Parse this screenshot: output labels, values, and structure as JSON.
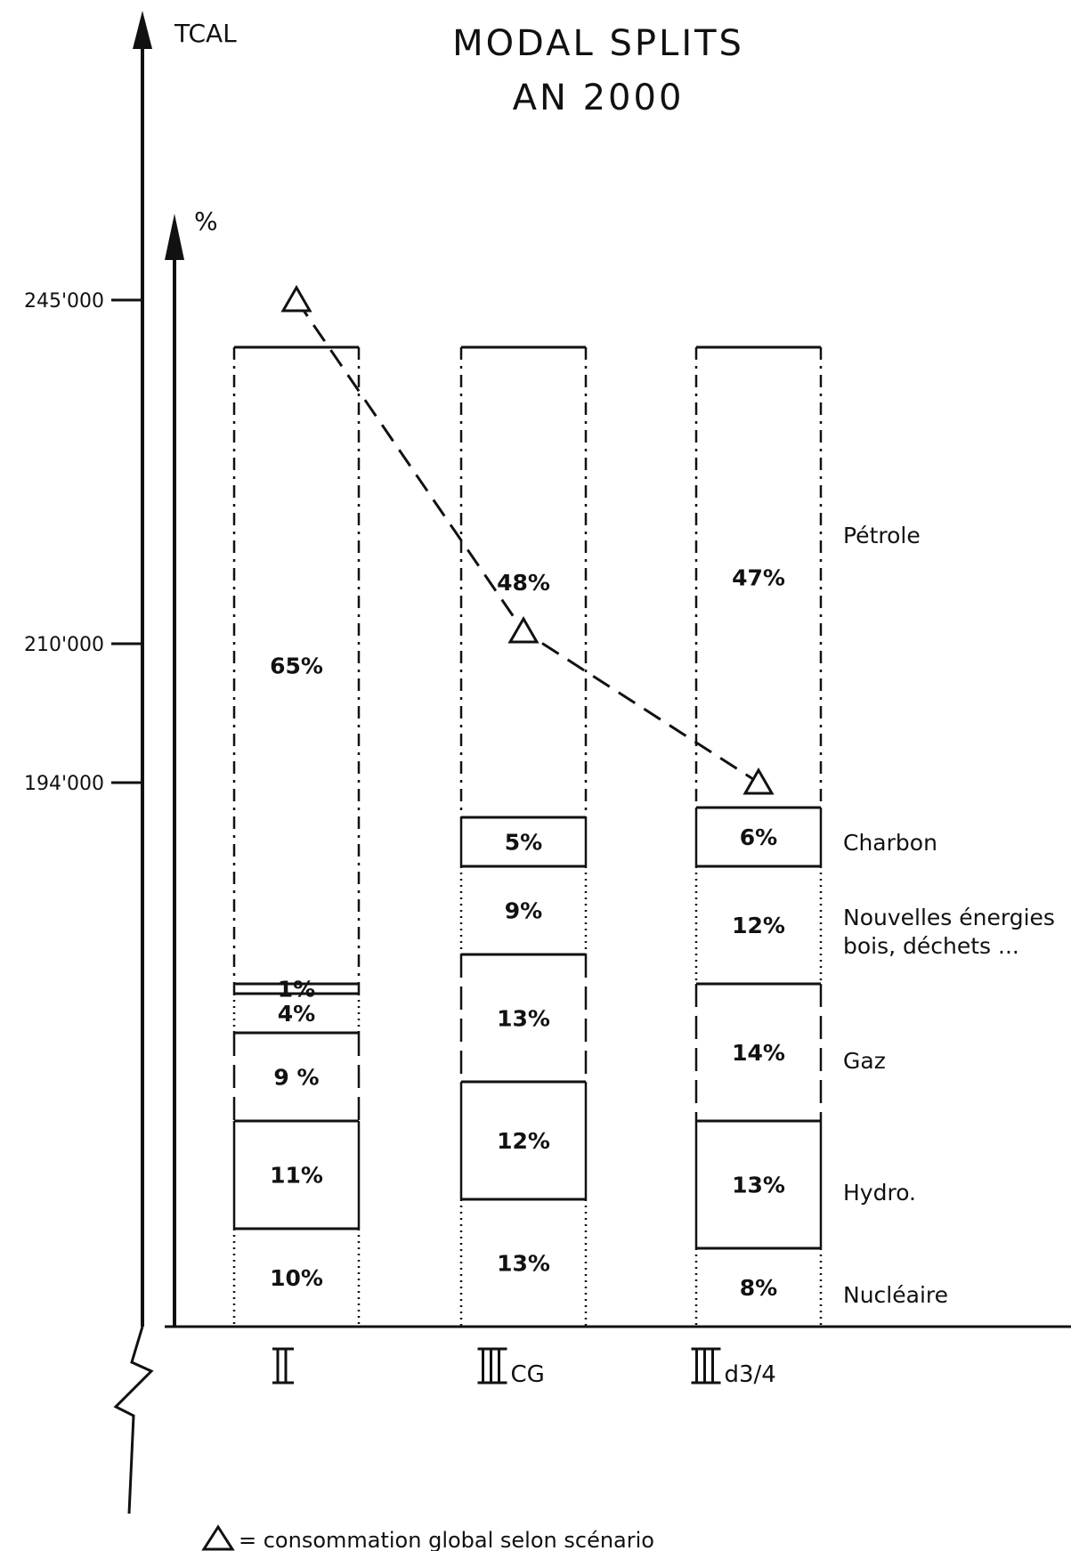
{
  "chart_data": {
    "type": "bar",
    "title": "MODAL SPLITS",
    "subtitle": "AN 2000",
    "y_left_label": "TCAL",
    "y_right_label": "%",
    "y_ticks": [
      "245'000",
      "210'000",
      "194'000"
    ],
    "y_tick_values": [
      245000,
      210000,
      194000
    ],
    "categories": [
      "II",
      "III CG",
      "III d3/4"
    ],
    "category_labels": [
      {
        "roman": "II",
        "suffix": ""
      },
      {
        "roman": "III",
        "suffix": "CG"
      },
      {
        "roman": "III",
        "suffix": "d3/4"
      }
    ],
    "series": [
      {
        "name": "Nucléaire",
        "values": [
          10,
          13,
          8
        ]
      },
      {
        "name": "Hydro.",
        "values": [
          11,
          12,
          13
        ]
      },
      {
        "name": "Gaz",
        "values": [
          9,
          13,
          14
        ]
      },
      {
        "name": "Nouvelles énergies bois, déchets ...",
        "values": [
          4,
          9,
          12
        ]
      },
      {
        "name": "Charbon",
        "values": [
          1,
          5,
          6
        ]
      },
      {
        "name": "Pétrole",
        "values": [
          65,
          48,
          47
        ]
      }
    ],
    "segment_labels": [
      [
        "10%",
        "11%",
        "9 %",
        "4%",
        "1%",
        "65%"
      ],
      [
        "13%",
        "12%",
        "13%",
        "9%",
        "5%",
        "48%"
      ],
      [
        "8%",
        "13%",
        "14%",
        "12%",
        "6%",
        "47%"
      ]
    ],
    "right_labels": [
      "Pétrole",
      "Charbon",
      "Nouvelles énergies",
      "bois, déchets ...",
      "Gaz",
      "Hydro.",
      "Nucléaire"
    ],
    "consumption": {
      "values": [
        245000,
        210000,
        194000
      ],
      "legend": "= consommation global selon scénario"
    }
  }
}
